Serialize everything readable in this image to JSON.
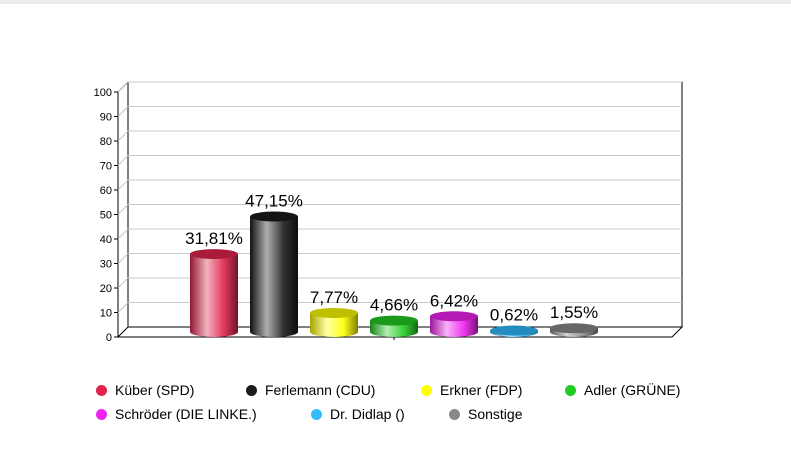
{
  "chart_data": {
    "type": "bar",
    "title": "",
    "xlabel": "",
    "ylabel": "",
    "ylim": [
      0,
      100
    ],
    "y_ticks": [
      "0",
      "10",
      "20",
      "30",
      "40",
      "50",
      "60",
      "70",
      "80",
      "90",
      "100"
    ],
    "grid": true,
    "legend_position": "bottom",
    "categories": [
      "Küber (SPD)",
      "Ferlemann (CDU)",
      "Erkner (FDP)",
      "Adler (GRÜNE)",
      "Schröder (DIE LINKE.)",
      "Dr. Didlap ()",
      "Sonstige"
    ],
    "values": [
      31.81,
      47.15,
      7.77,
      4.66,
      6.42,
      0.62,
      1.55
    ],
    "value_labels": [
      "31,81%",
      "47,15%",
      "7,77%",
      "4,66%",
      "6,42%",
      "0,62%",
      "1,55%"
    ],
    "colors": [
      "#e0244c",
      "#1a1a1a",
      "#ffff00",
      "#22cc22",
      "#ee22ee",
      "#33bbff",
      "#888888"
    ]
  }
}
